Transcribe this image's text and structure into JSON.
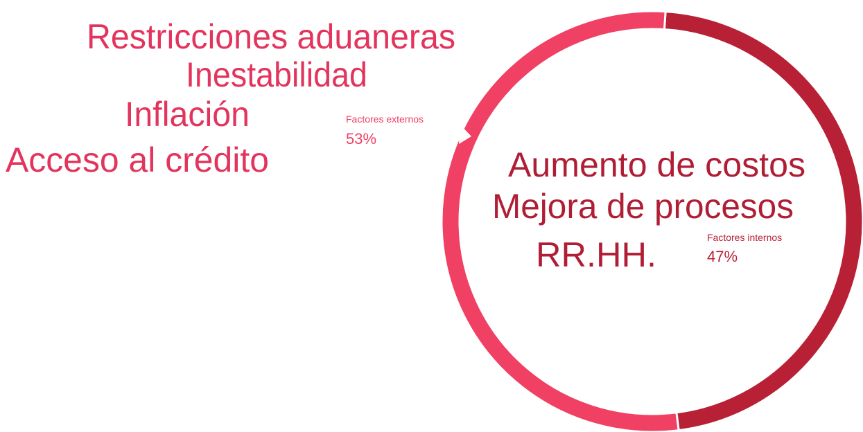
{
  "chart_data": {
    "type": "donut",
    "categories": [
      "Factores internos",
      "Factores externos"
    ],
    "values": [
      47,
      53
    ],
    "value_labels": [
      "47%",
      "53%"
    ],
    "colors": [
      "#b82035",
      "#f04064"
    ],
    "details": [
      [
        "Aumento de costos",
        "Mejora de procesos",
        "RR.HH."
      ],
      [
        "Restricciones aduaneras",
        "Inestabilidad",
        "Inflación",
        "Acceso al crédito"
      ]
    ]
  }
}
